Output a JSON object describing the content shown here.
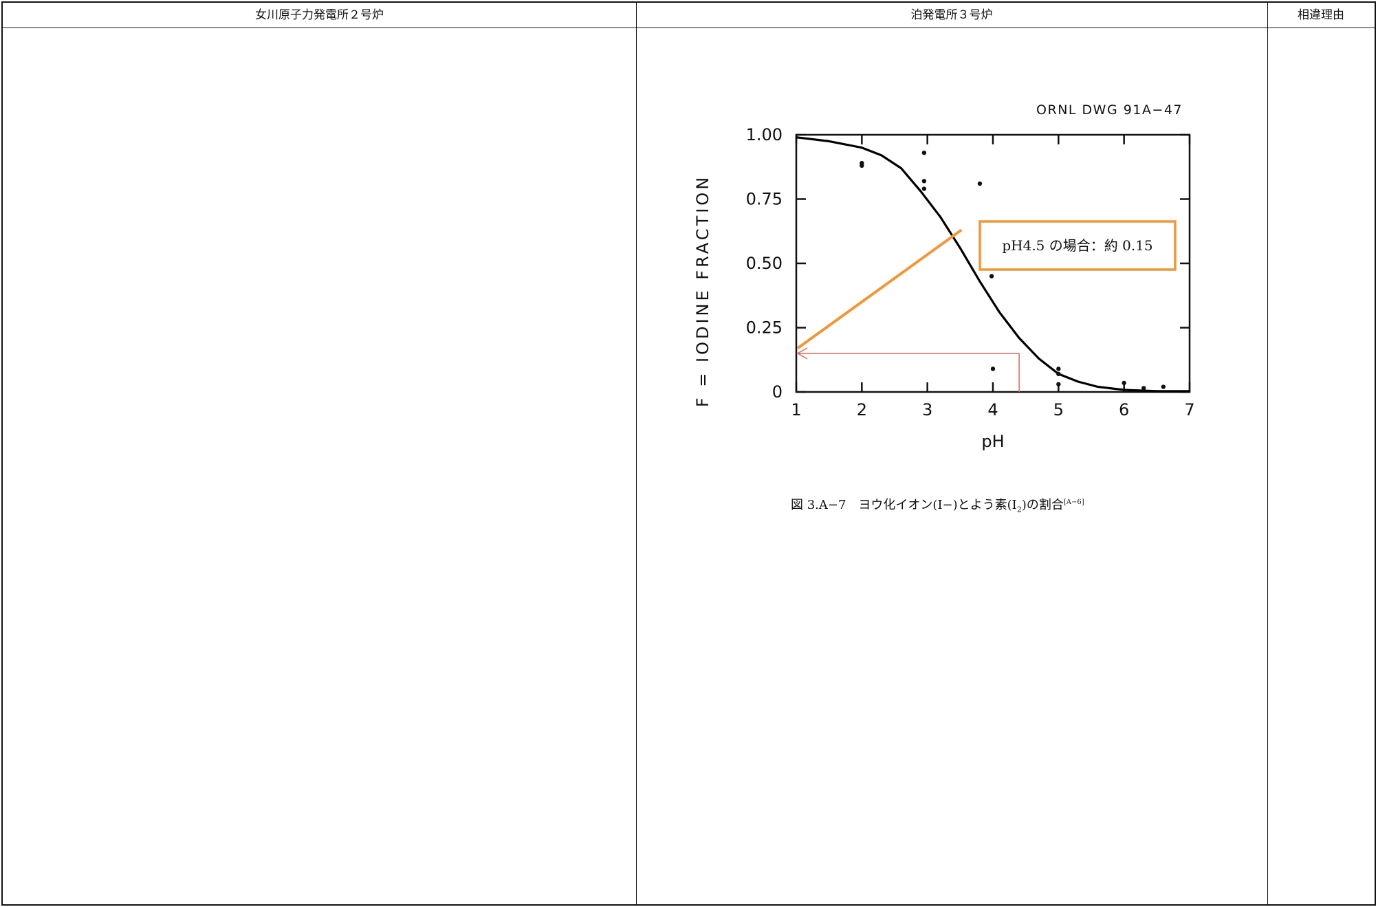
{
  "table": {
    "headers": {
      "left": "女川原子力発電所２号炉",
      "middle": "泊発電所３号炉",
      "right": "相違理由"
    }
  },
  "figure": {
    "drawing_id": "ORNL DWG 91A−47",
    "annotation": "pH4.5 の場合：約 0.15",
    "caption": {
      "prefix": "図 3.A−7　ヨウ化イオン(I−)とよう素(I",
      "sub": "2",
      "middle": ")の割合",
      "sup": "[A−6]"
    }
  },
  "chart_data": {
    "type": "scatter",
    "xlabel": "pH",
    "ylabel": "F = IODINE FRACTION",
    "xlim": [
      1,
      7
    ],
    "ylim": [
      0,
      1.0
    ],
    "x_ticks": [
      "1",
      "2",
      "3",
      "4",
      "5",
      "6",
      "7"
    ],
    "y_ticks": [
      "0",
      "0.25",
      "0.50",
      "0.75",
      "1.00"
    ],
    "series": [
      {
        "kind": "points",
        "points": [
          [
            2.0,
            0.89
          ],
          [
            2.0,
            0.88
          ],
          [
            2.95,
            0.93
          ],
          [
            2.95,
            0.82
          ],
          [
            2.95,
            0.79
          ],
          [
            3.8,
            0.81
          ],
          [
            3.98,
            0.45
          ],
          [
            4.0,
            0.09
          ],
          [
            5.0,
            0.09
          ],
          [
            5.0,
            0.07
          ],
          [
            5.0,
            0.03
          ],
          [
            6.0,
            0.035
          ],
          [
            6.3,
            0.015
          ],
          [
            6.6,
            0.02
          ]
        ]
      },
      {
        "kind": "fitted-curve",
        "points": [
          [
            1.0,
            0.99
          ],
          [
            1.5,
            0.975
          ],
          [
            2.0,
            0.95
          ],
          [
            2.3,
            0.92
          ],
          [
            2.6,
            0.87
          ],
          [
            2.9,
            0.78
          ],
          [
            3.2,
            0.68
          ],
          [
            3.5,
            0.56
          ],
          [
            3.8,
            0.43
          ],
          [
            4.1,
            0.31
          ],
          [
            4.4,
            0.21
          ],
          [
            4.7,
            0.13
          ],
          [
            5.0,
            0.07
          ],
          [
            5.3,
            0.04
          ],
          [
            5.6,
            0.02
          ],
          [
            6.0,
            0.008
          ],
          [
            6.5,
            0.003
          ],
          [
            7.0,
            0.003
          ]
        ]
      }
    ],
    "annotations": [
      {
        "type": "readout",
        "x": 4.4,
        "y": 0.15,
        "color": "#e07060"
      },
      {
        "type": "callout-line",
        "color": "#f0973a"
      }
    ],
    "colors": {
      "curve": "#000000",
      "callout": "#f0973a",
      "readout": "#e07060"
    }
  }
}
